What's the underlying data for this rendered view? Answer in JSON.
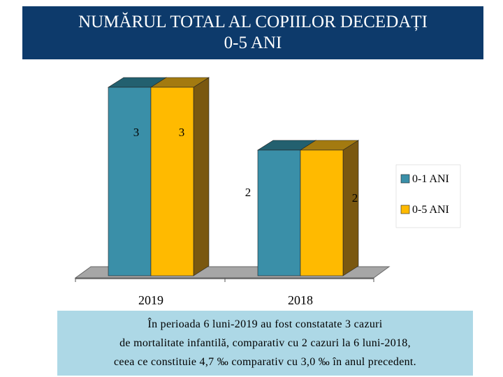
{
  "chart_data": {
    "type": "bar",
    "title": "NUMĂRUL TOTAL AL COPIILOR DECEDAȚI 0-5 ANI",
    "categories": [
      "2019",
      "2018"
    ],
    "series": [
      {
        "name": "0-1 ANI",
        "values": [
          3,
          2
        ],
        "data_labels": [
          "3",
          "2"
        ]
      },
      {
        "name": "0-5 ANI",
        "values": [
          3,
          2
        ],
        "data_labels": [
          "3",
          "2"
        ]
      }
    ],
    "xlabel": "",
    "ylabel": "",
    "ylim": [
      0,
      3.2
    ],
    "grid": false,
    "legend": "right",
    "three_d": true
  },
  "title": {
    "line1": "NUMĂRUL TOTAL AL COPIILOR DECEDAȚI",
    "line2": "0-5 ANI"
  },
  "note": {
    "line1": "În perioada 6 luni-2019 au fost constatate 3 cazuri",
    "line2": "de mortalitate infantilă, comparativ cu 2 cazuri la 6 luni-2018,",
    "line3": "ceea ce constituie 4,7 ‰ comparativ cu 3,0 ‰ în anul precedent."
  },
  "colors": {
    "title_bg": "#0d3a6b",
    "series1_front": "#3a8fa8",
    "series1_top": "#23606f",
    "series1_side": "#1f5766",
    "series2_front": "#ffba00",
    "series2_top": "#a37a10",
    "series2_side": "#7a5810",
    "floor": "#a6a6a6",
    "note_bg": "#add8e6"
  }
}
